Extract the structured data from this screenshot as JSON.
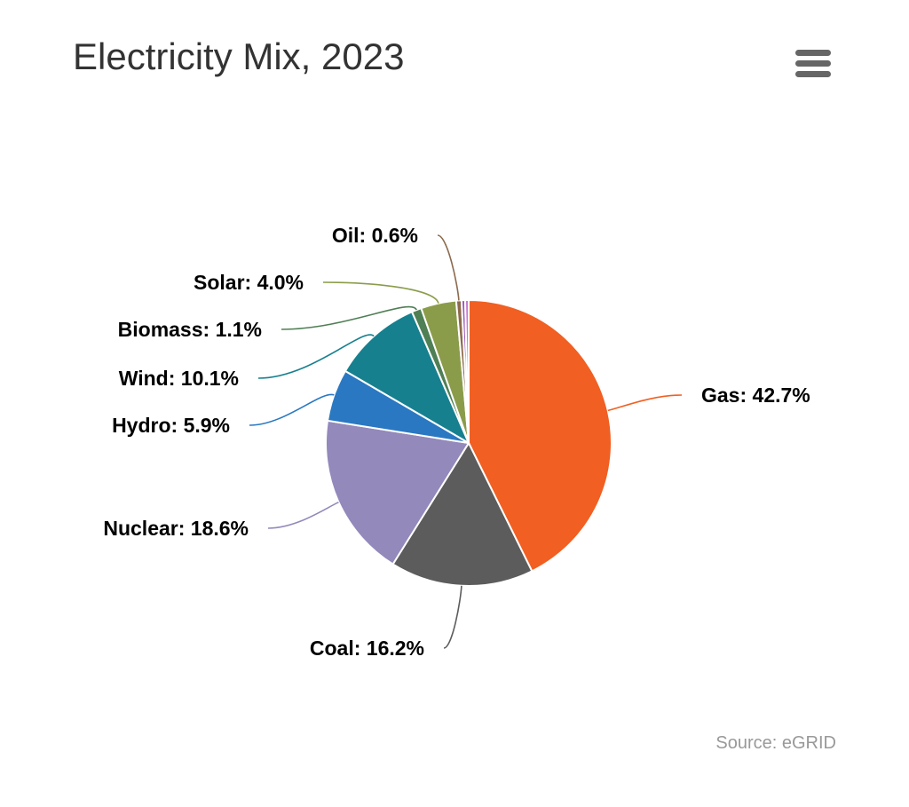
{
  "chart_data": {
    "type": "pie",
    "title": "Electricity Mix, 2023",
    "credit": "Source: eGRID",
    "slices": [
      {
        "name": "Gas",
        "value": 42.7,
        "label": "Gas: 42.7%",
        "color": "#f15f22"
      },
      {
        "name": "Coal",
        "value": 16.2,
        "label": "Coal: 16.2%",
        "color": "#5c5c5c"
      },
      {
        "name": "Nuclear",
        "value": 18.6,
        "label": "Nuclear: 18.6%",
        "color": "#9389bb"
      },
      {
        "name": "Hydro",
        "value": 5.9,
        "label": "Hydro: 5.9%",
        "color": "#2a78c2"
      },
      {
        "name": "Wind",
        "value": 10.1,
        "label": "Wind: 10.1%",
        "color": "#17808f"
      },
      {
        "name": "Biomass",
        "value": 1.1,
        "label": "Biomass: 1.1%",
        "color": "#4f7f55"
      },
      {
        "name": "Solar",
        "value": 4.0,
        "label": "Solar: 4.0%",
        "color": "#8a9c4a"
      },
      {
        "name": "Oil",
        "value": 0.6,
        "label": "Oil: 0.6%",
        "color": "#8c6a4c"
      },
      {
        "name": "",
        "value": 0.4,
        "label": "",
        "color": "#9c58b8"
      },
      {
        "name": "",
        "value": 0.4,
        "label": "",
        "color": "#c77ad0"
      }
    ]
  },
  "menu": {
    "icon": "hamburger-menu-icon"
  }
}
